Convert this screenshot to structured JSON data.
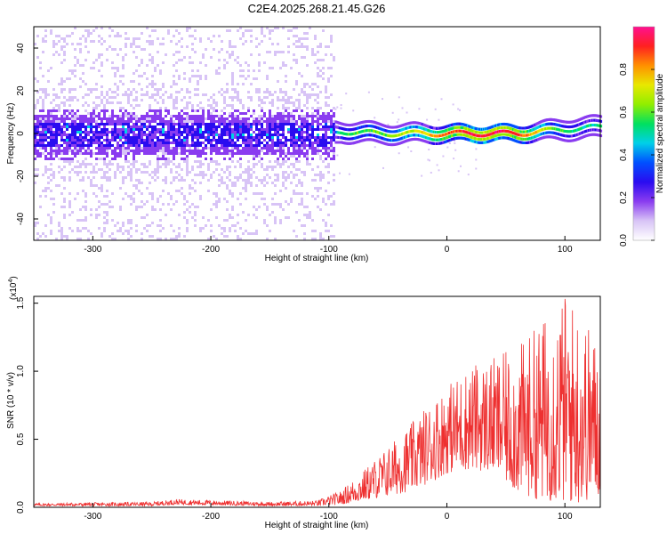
{
  "title": "C2E4.2025.268.21.45.G26",
  "chart_data": [
    {
      "type": "heatmap",
      "title": "C2E4.2025.268.21.45.G26",
      "xlabel": "Height of straight line (km)",
      "ylabel": "Frequency (Hz)",
      "xlim": [
        -350,
        130
      ],
      "ylim": [
        -50,
        50
      ],
      "xticks": [
        -300,
        -200,
        -100,
        0,
        100
      ],
      "xtick_labels": [
        "-300",
        "-200",
        "-100",
        "0",
        "100"
      ],
      "yticks": [
        -40,
        -20,
        0,
        20,
        40
      ],
      "ytick_labels": [
        "-40",
        "-20",
        "0",
        "20",
        "40"
      ],
      "signal_track": {
        "x": [
          -350,
          -100,
          -90,
          -60,
          -30,
          0,
          20,
          40,
          60,
          80,
          100,
          130
        ],
        "frequency": [
          0,
          0,
          1,
          0,
          0,
          0,
          0,
          0,
          0,
          1,
          2,
          3
        ],
        "amplitude": [
          0.2,
          0.25,
          0.55,
          0.6,
          0.7,
          0.85,
          0.95,
          0.95,
          0.9,
          0.7,
          0.55,
          0.5
        ]
      },
      "noise_floor_region": {
        "x_start": -350,
        "x_end": -95,
        "freq_spread_hz": 50
      },
      "colorbar": {
        "label": "Normalized spectral amplitude",
        "range": [
          0,
          1
        ],
        "ticks": [
          0.0,
          0.2,
          0.4,
          0.6,
          0.8
        ],
        "tick_labels": [
          "0.0",
          "0.2",
          "0.4",
          "0.6",
          "0.8"
        ],
        "colormap": [
          "#ffffff",
          "#d8c4f6",
          "#8a3cf0",
          "#2a0cf0",
          "#0050ff",
          "#00d0e8",
          "#00e060",
          "#90ee00",
          "#e8e800",
          "#ff9000",
          "#ff2020",
          "#ff1090"
        ]
      }
    },
    {
      "type": "line",
      "xlabel": "Height of straight line (km)",
      "ylabel": "SNR (10 * v/v)",
      "y_multiplier": "(x10^4)",
      "y_multiplier_base": "(x10",
      "y_multiplier_exp": "4",
      "y_multiplier_close": ")",
      "xlim": [
        -350,
        130
      ],
      "ylim": [
        0,
        1.55
      ],
      "xticks": [
        -300,
        -200,
        -100,
        0,
        100
      ],
      "xtick_labels": [
        "-300",
        "-200",
        "-100",
        "0",
        "100"
      ],
      "yticks": [
        0.0,
        0.5,
        1.0,
        1.5
      ],
      "ytick_labels": [
        "0.0",
        "0.5",
        "1.0",
        "1.5"
      ],
      "series": [
        {
          "name": "SNR",
          "color": "#ee3030",
          "envelope": {
            "x": [
              -350,
              -250,
              -230,
              -150,
              -110,
              -90,
              -70,
              -50,
              -30,
              -10,
              0,
              20,
              40,
              60,
              80,
              100,
              110,
              120,
              130
            ],
            "upper": [
              0.03,
              0.04,
              0.06,
              0.04,
              0.05,
              0.12,
              0.28,
              0.45,
              0.62,
              0.82,
              0.9,
              1.05,
              1.1,
              1.18,
              1.38,
              1.58,
              1.5,
              1.35,
              1.2
            ],
            "lower": [
              0.01,
              0.01,
              0.02,
              0.01,
              0.01,
              0.02,
              0.05,
              0.08,
              0.12,
              0.2,
              0.25,
              0.28,
              0.25,
              0.1,
              0.05,
              0.03,
              0.02,
              0.05,
              0.08
            ]
          }
        }
      ]
    }
  ]
}
